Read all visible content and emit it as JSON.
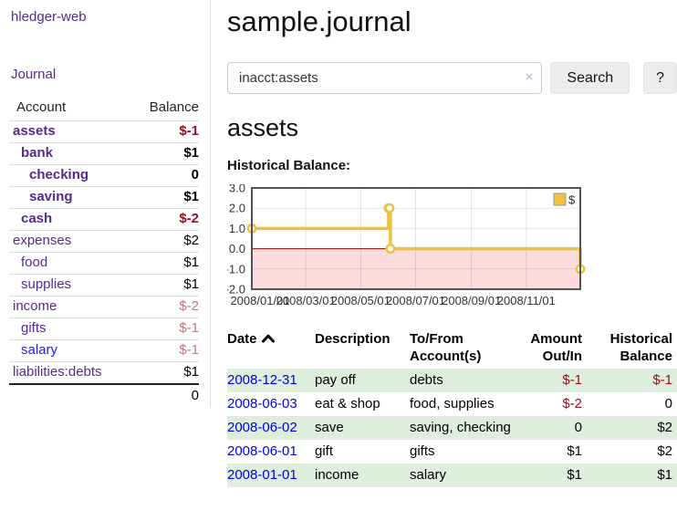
{
  "colors": {
    "link_purple": "#552a90",
    "link_blue": "#2a22d9",
    "date_blue": "#0000e0",
    "negative_dark": "#951122",
    "negative_muted": "#c4777f",
    "row_green": "#ddeedd",
    "negative_region_pink": "#fcdcdc",
    "zero_line": "#8b0000"
  },
  "app": {
    "title": "hledger-web"
  },
  "sidebar": {
    "journal_link": "Journal",
    "accounts": {
      "header_account": "Account",
      "header_balance": "Balance",
      "rows": [
        {
          "account": "assets",
          "depth": 0,
          "balance": "$-1",
          "bold": true,
          "balance_style": "negative",
          "link": "purple"
        },
        {
          "account": "bank",
          "depth": 1,
          "balance": "$1",
          "bold": true,
          "balance_style": "normal",
          "link": "purple"
        },
        {
          "account": "checking",
          "depth": 2,
          "balance": "0",
          "bold": true,
          "balance_style": "normal",
          "link": "purple"
        },
        {
          "account": "saving",
          "depth": 2,
          "balance": "$1",
          "bold": true,
          "balance_style": "normal",
          "link": "purple"
        },
        {
          "account": "cash",
          "depth": 1,
          "balance": "$-2",
          "bold": true,
          "balance_style": "negative",
          "link": "purple"
        },
        {
          "account": "expenses",
          "depth": 0,
          "balance": "$2",
          "bold": false,
          "balance_style": "normal",
          "link": "purple"
        },
        {
          "account": "food",
          "depth": 1,
          "balance": "$1",
          "bold": false,
          "balance_style": "normal",
          "link": "purple"
        },
        {
          "account": "supplies",
          "depth": 1,
          "balance": "$1",
          "bold": false,
          "balance_style": "normal",
          "link": "purple"
        },
        {
          "account": "income",
          "depth": 0,
          "balance": "$-2",
          "bold": false,
          "balance_style": "negative-muted",
          "link": "purple"
        },
        {
          "account": "gifts",
          "depth": 1,
          "balance": "$-1",
          "bold": false,
          "balance_style": "negative-muted",
          "link": "purple"
        },
        {
          "account": "salary",
          "depth": 1,
          "balance": "$-1",
          "bold": false,
          "balance_style": "negative-muted",
          "link": "blue"
        },
        {
          "account": "liabilities:debts",
          "depth": 0,
          "balance": "$1",
          "bold": false,
          "balance_style": "normal",
          "link": "purple"
        }
      ],
      "total": "0"
    }
  },
  "main": {
    "title": "sample.journal",
    "search": {
      "value": "inacct:assets",
      "clear_icon": "×",
      "button_label": "Search",
      "help_label": "?"
    },
    "account_heading": "assets",
    "chart_title": "Historical Balance:",
    "register": {
      "headers": {
        "date": "Date",
        "description": "Description",
        "account": "To/From Account(s)",
        "amount": "Amount Out/In",
        "balance": "Historical Balance"
      },
      "sort": "date ascending",
      "rows": [
        {
          "date": "2008-12-31",
          "description": "pay off",
          "accounts": "debts",
          "amount": "$-1",
          "balance": "$-1",
          "amount_negative": true,
          "balance_negative": true,
          "highlight": true
        },
        {
          "date": "2008-06-03",
          "description": "eat & shop",
          "accounts": "food, supplies",
          "amount": "$-2",
          "balance": "0",
          "amount_negative": true,
          "balance_negative": false,
          "highlight": false
        },
        {
          "date": "2008-06-02",
          "description": "save",
          "accounts": "saving, checking",
          "amount": "0",
          "balance": "$2",
          "amount_negative": false,
          "balance_negative": false,
          "highlight": true
        },
        {
          "date": "2008-06-01",
          "description": "gift",
          "accounts": "gifts",
          "amount": "$1",
          "balance": "$2",
          "amount_negative": false,
          "balance_negative": false,
          "highlight": false
        },
        {
          "date": "2008-01-01",
          "description": "income",
          "accounts": "salary",
          "amount": "$1",
          "balance": "$1",
          "amount_negative": false,
          "balance_negative": false,
          "highlight": true
        }
      ]
    }
  },
  "chart_data": {
    "type": "line",
    "title": "Historical Balance",
    "steps": true,
    "series": [
      {
        "name": "$",
        "color": "#edc240",
        "points": [
          [
            "2008-01-01",
            1
          ],
          [
            "2008-06-01",
            2
          ],
          [
            "2008-06-02",
            2
          ],
          [
            "2008-06-03",
            0
          ],
          [
            "2008-12-31",
            -1
          ]
        ]
      }
    ],
    "x_range": [
      "2008-01-01",
      "2008-12-31"
    ],
    "x_ticks": [
      "2008/01/01",
      "2008/03/01",
      "2008/05/01",
      "2008/07/01",
      "2008/09/01",
      "2008/11/01"
    ],
    "y_range": [
      -2,
      3
    ],
    "y_ticks": [
      "3.0",
      "2.0",
      "1.0",
      "0.0",
      "-1.0",
      "-2.0"
    ],
    "grid": true,
    "legend_position": "top-right",
    "negative_region_shaded": true
  }
}
